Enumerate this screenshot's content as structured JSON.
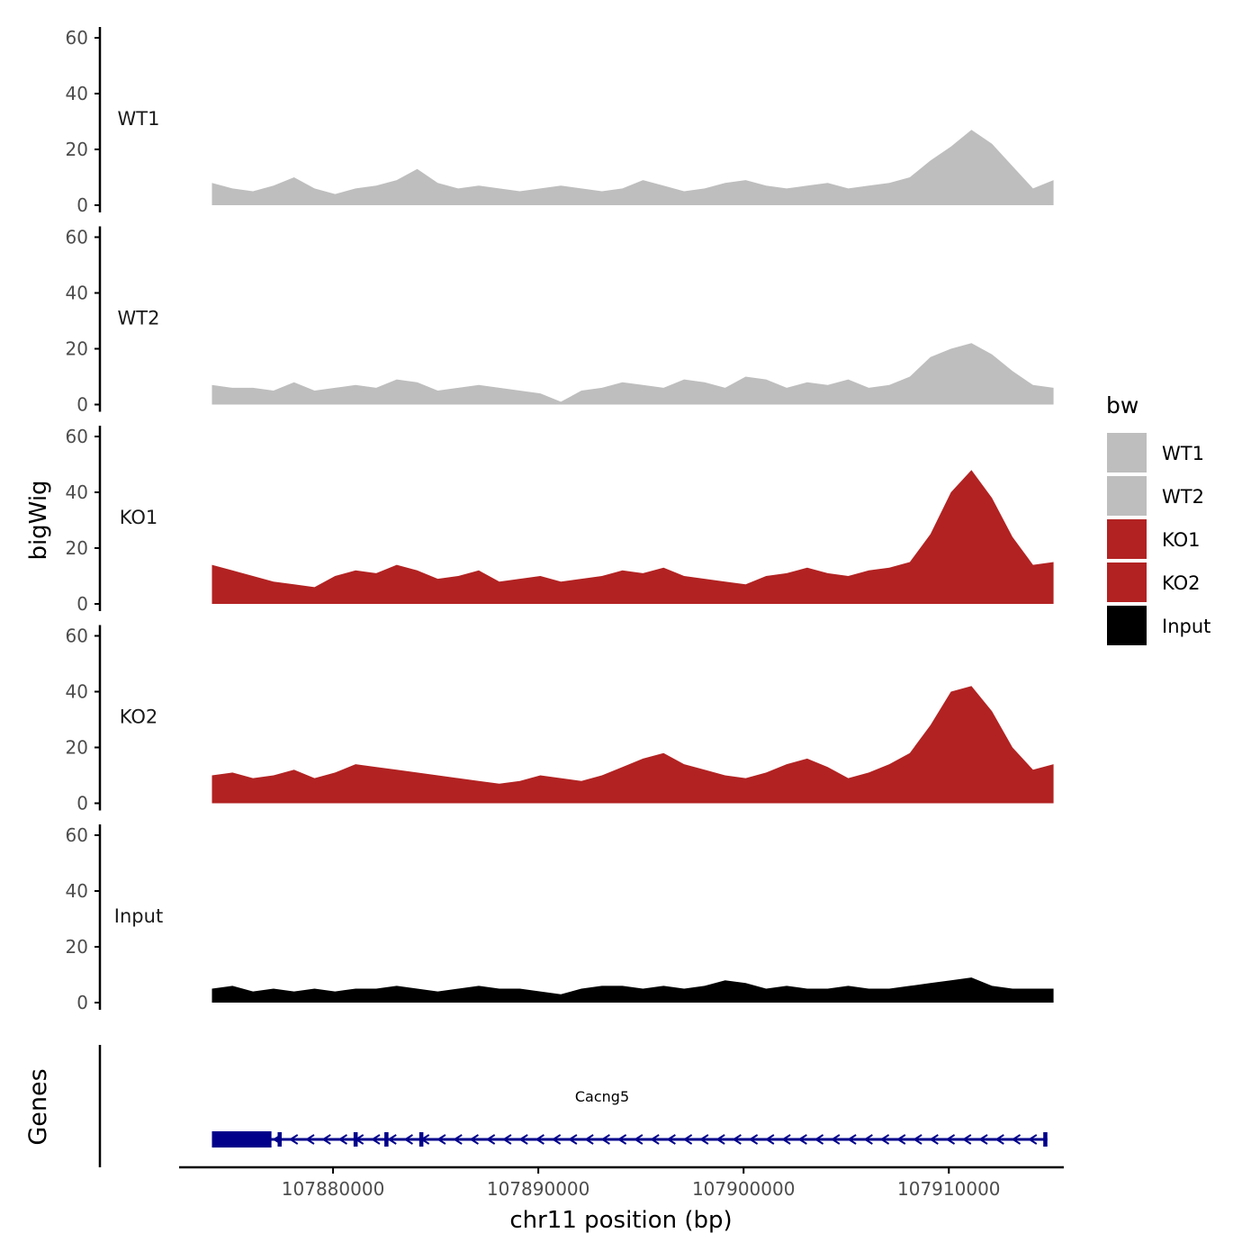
{
  "chart_data": {
    "type": "area",
    "ylabel": "bigWig",
    "xlabel": "chr11 position (bp)",
    "ylim": [
      0,
      60
    ],
    "yticks": [
      "0",
      "20",
      "40",
      "60"
    ],
    "xlim": [
      107872500,
      107915600
    ],
    "xticks": [
      {
        "value": 107880000,
        "label": "107880000"
      },
      {
        "value": 107890000,
        "label": "107890000"
      },
      {
        "value": 107900000,
        "label": "107900000"
      },
      {
        "value": 107910000,
        "label": "107910000"
      }
    ],
    "x": [
      107874100,
      107875100,
      107876100,
      107877100,
      107878100,
      107879100,
      107880100,
      107881100,
      107882100,
      107883100,
      107884100,
      107885100,
      107886100,
      107887100,
      107888100,
      107889100,
      107890100,
      107891100,
      107892100,
      107893100,
      107894100,
      107895100,
      107896100,
      107897100,
      107898100,
      107899100,
      107900100,
      107901100,
      107902100,
      107903100,
      107904100,
      107905100,
      107906100,
      107907100,
      107908100,
      107909100,
      107910100,
      107911100,
      107912100,
      107913100,
      107914100,
      107915100
    ],
    "series": [
      {
        "name": "WT1",
        "color": "#bebebe",
        "values": [
          8,
          6,
          5,
          7,
          10,
          6,
          4,
          6,
          7,
          9,
          13,
          8,
          6,
          7,
          6,
          5,
          6,
          7,
          6,
          5,
          6,
          9,
          7,
          5,
          6,
          8,
          9,
          7,
          6,
          7,
          8,
          6,
          7,
          8,
          10,
          16,
          21,
          27,
          22,
          14,
          6,
          9
        ]
      },
      {
        "name": "WT2",
        "color": "#bebebe",
        "values": [
          7,
          6,
          6,
          5,
          8,
          5,
          6,
          7,
          6,
          9,
          8,
          5,
          6,
          7,
          6,
          5,
          4,
          1,
          5,
          6,
          8,
          7,
          6,
          9,
          8,
          6,
          10,
          9,
          6,
          8,
          7,
          9,
          6,
          7,
          10,
          17,
          20,
          22,
          18,
          12,
          7,
          6
        ]
      },
      {
        "name": "KO1",
        "color": "#b22222",
        "values": [
          14,
          12,
          10,
          8,
          7,
          6,
          10,
          12,
          11,
          14,
          12,
          9,
          10,
          12,
          8,
          9,
          10,
          8,
          9,
          10,
          12,
          11,
          13,
          10,
          9,
          8,
          7,
          10,
          11,
          13,
          11,
          10,
          12,
          13,
          15,
          25,
          40,
          48,
          38,
          24,
          14,
          15
        ]
      },
      {
        "name": "KO2",
        "color": "#b22222",
        "values": [
          10,
          11,
          9,
          10,
          12,
          9,
          11,
          14,
          13,
          12,
          11,
          10,
          9,
          8,
          7,
          8,
          10,
          9,
          8,
          10,
          13,
          16,
          18,
          14,
          12,
          10,
          9,
          11,
          14,
          16,
          13,
          9,
          11,
          14,
          18,
          28,
          40,
          42,
          33,
          20,
          12,
          14
        ]
      },
      {
        "name": "Input",
        "color": "#000000",
        "values": [
          5,
          6,
          4,
          5,
          4,
          5,
          4,
          5,
          5,
          6,
          5,
          4,
          5,
          6,
          5,
          5,
          4,
          3,
          5,
          6,
          6,
          5,
          6,
          5,
          6,
          8,
          7,
          5,
          6,
          5,
          5,
          6,
          5,
          5,
          6,
          7,
          8,
          9,
          6,
          5,
          5,
          5
        ]
      }
    ],
    "genes_track": {
      "label": "Genes",
      "gene_name": "Cacng5",
      "strand": "-",
      "start": 107874100,
      "end": 107914800,
      "exons": [
        [
          107874100,
          107877000
        ],
        [
          107877300,
          107877500
        ],
        [
          107881000,
          107881200
        ],
        [
          107882500,
          107882700
        ],
        [
          107884200,
          107884400
        ],
        [
          107914600,
          107914800
        ]
      ],
      "color": "#00008b"
    },
    "legend": {
      "title": "bw",
      "position": "right",
      "entries": [
        {
          "label": "WT1",
          "color": "#bebebe"
        },
        {
          "label": "WT2",
          "color": "#bebebe"
        },
        {
          "label": "KO1",
          "color": "#b22222"
        },
        {
          "label": "KO2",
          "color": "#b22222"
        },
        {
          "label": "Input",
          "color": "#000000"
        }
      ]
    }
  }
}
